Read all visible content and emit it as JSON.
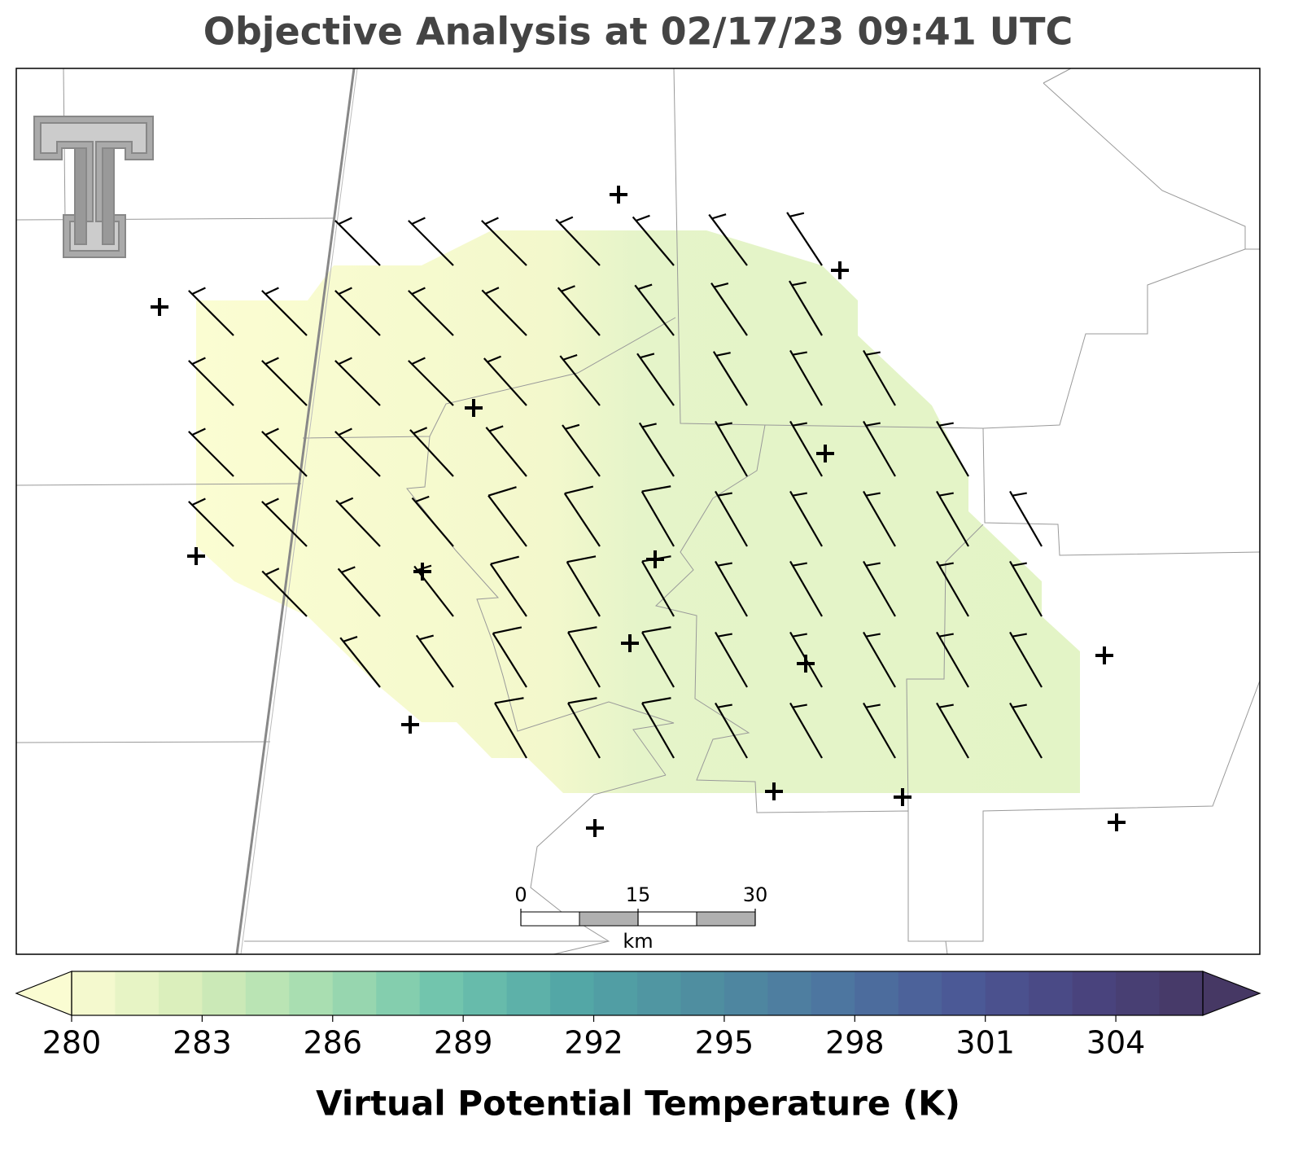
{
  "title": "Objective Analysis at 02/17/23 09:41 UTC",
  "colorbar": {
    "type": "colorbar",
    "label": "Virtual Potential Temperature (K)",
    "clim": [
      280,
      306
    ],
    "step": 1,
    "ticks": [
      280,
      283,
      286,
      289,
      292,
      295,
      298,
      301,
      304
    ],
    "colors": [
      "#fafcd2",
      "#d6edb9",
      "#a4dcb0",
      "#6fc4ad",
      "#52a6a6",
      "#4f8ea0",
      "#4d78a0",
      "#4b5b98",
      "#4a4581",
      "#463864"
    ],
    "extend": "both"
  },
  "scale_bar": {
    "ticks": [
      0,
      15,
      30
    ],
    "unit": "km"
  }
}
